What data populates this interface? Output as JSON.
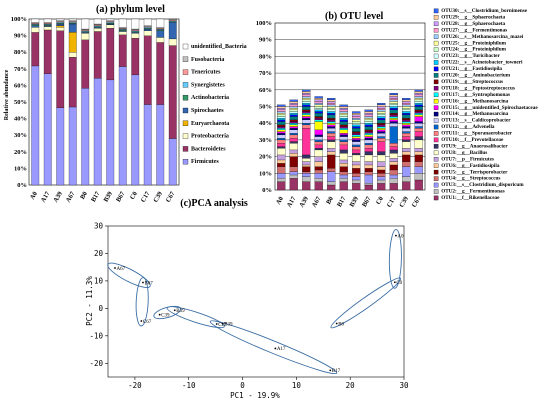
{
  "chart_data": [
    {
      "type": "bar",
      "stacked": true,
      "title": "(a) phylum level",
      "ylabel": "Relative abundance",
      "ylim": [
        0,
        100
      ],
      "yticks": [
        "0%",
        "10%",
        "20%",
        "30%",
        "40%",
        "50%",
        "60%",
        "70%",
        "80%",
        "90%",
        "100%"
      ],
      "categories": [
        "A0",
        "A17",
        "A39",
        "A67",
        "B0",
        "B17",
        "B39",
        "B67",
        "C0",
        "C17",
        "C39",
        "C67"
      ],
      "legend_placement": "right",
      "series": [
        {
          "name": "Firmicutes",
          "color": "#9999ff",
          "values": [
            71,
            66,
            46,
            47,
            58,
            64,
            63,
            71,
            66,
            48,
            48,
            28
          ]
        },
        {
          "name": "Bacteroidetes",
          "color": "#993366",
          "values": [
            20,
            26,
            46,
            30,
            29,
            28,
            31,
            19,
            22,
            41,
            37,
            56
          ]
        },
        {
          "name": "Proteobacteria",
          "color": "#ffffcc",
          "values": [
            3,
            2,
            2,
            3,
            4,
            2,
            2,
            2,
            3,
            3,
            3,
            4
          ]
        },
        {
          "name": "Euryarchaeota",
          "color": "#f0b400",
          "values": [
            0,
            0,
            1,
            12,
            0,
            0,
            0,
            0,
            0,
            0,
            0,
            0
          ]
        },
        {
          "name": "Spirochaetes",
          "color": "#3366b0",
          "values": [
            1,
            0.5,
            1,
            5,
            0.5,
            0.5,
            0.5,
            0.5,
            0.5,
            1,
            4,
            10
          ]
        },
        {
          "name": "Actinobacteria",
          "color": "#339966",
          "values": [
            0.5,
            0.5,
            0.5,
            0.5,
            0.5,
            0.5,
            0.5,
            0.5,
            0.5,
            0.5,
            0.5,
            0.5
          ]
        },
        {
          "name": "Synergistetes",
          "color": "#66ccff",
          "values": [
            0.5,
            0.5,
            0.5,
            0.5,
            0.5,
            0.5,
            0.5,
            0.5,
            0.5,
            0.5,
            0.5,
            0.5
          ]
        },
        {
          "name": "Tenericutes",
          "color": "#ff9999",
          "values": [
            0.5,
            0.5,
            0.5,
            0.5,
            0.5,
            0.5,
            0.5,
            0.5,
            0.5,
            0.5,
            0.5,
            0.5
          ]
        },
        {
          "name": "Fusobacteria",
          "color": "#c0c0c0",
          "values": [
            0.5,
            0.5,
            0.5,
            0.5,
            0.5,
            0.5,
            0.5,
            0.5,
            0.5,
            0.5,
            0.5,
            0.5
          ]
        },
        {
          "name": "unidentified_Bacteria",
          "color": "#ffffff",
          "values": [
            2,
            2,
            1,
            1,
            6,
            3,
            1,
            5,
            6,
            4,
            5,
            0
          ]
        }
      ]
    },
    {
      "type": "bar",
      "stacked": true,
      "title": "(b) OTU level",
      "ylim": [
        0,
        100
      ],
      "yticks": [
        "0%",
        "10%",
        "20%",
        "30%",
        "40%",
        "50%",
        "60%",
        "70%",
        "80%",
        "90%",
        "100%"
      ],
      "categories": [
        "A0",
        "A17",
        "A39",
        "A67",
        "B0",
        "B17",
        "B39",
        "B67",
        "C0",
        "C17",
        "C39",
        "C67"
      ],
      "legend_placement": "right",
      "series": [
        {
          "name": "OTU1:__f__Rikenellaceae",
          "color": "#993366",
          "values": [
            5,
            7,
            5,
            5,
            3,
            5,
            4,
            3,
            4,
            4,
            5,
            6
          ]
        },
        {
          "name": "OTU2:__g__Fermentimonas",
          "color": "#c0c0c0",
          "values": [
            2,
            2,
            3,
            2,
            2,
            2,
            2,
            1,
            2,
            3,
            3,
            4
          ]
        },
        {
          "name": "OTU3:__s__Clostridium_disporicum",
          "color": "#9999ff",
          "values": [
            3,
            2,
            2,
            3,
            6,
            2,
            2,
            5,
            2,
            2,
            6,
            4
          ]
        },
        {
          "name": "OTU4:__g__Streptococcus",
          "color": "#d07070",
          "values": [
            4,
            3,
            1,
            2,
            2,
            2,
            2,
            2,
            2,
            3,
            3,
            3
          ]
        },
        {
          "name": "OTU5:__g__Terrisporobacter",
          "color": "#800000",
          "values": [
            2,
            6,
            3,
            2,
            8,
            3,
            3,
            2,
            2,
            3,
            4,
            4
          ]
        },
        {
          "name": "OTU6:__g__Fastidiosipila",
          "color": "#ffcc99",
          "values": [
            2,
            2,
            1,
            3,
            2,
            2,
            2,
            2,
            2,
            2,
            2,
            2
          ]
        },
        {
          "name": "OTU7:__p__Firmicutes",
          "color": "#c4a0e0",
          "values": [
            3,
            2,
            2,
            3,
            2,
            2,
            2,
            2,
            3,
            2,
            2,
            2
          ]
        },
        {
          "name": "OTU8:__g__Bacillus",
          "color": "#ffffcc",
          "values": [
            4,
            4,
            2,
            4,
            4,
            4,
            4,
            4,
            4,
            3,
            4,
            5
          ]
        },
        {
          "name": "OTU9:__g__Anaerosalibacter",
          "color": "#333366",
          "values": [
            1,
            1,
            2,
            1,
            1,
            2,
            1,
            2,
            2,
            2,
            1,
            2
          ]
        },
        {
          "name": "OTU10:__f__Prevotellaceae",
          "color": "#ff3399",
          "values": [
            2,
            2,
            16,
            2,
            2,
            3,
            2,
            2,
            6,
            2,
            2,
            3
          ]
        },
        {
          "name": "OTU11:__g__Sporanaerobacter",
          "color": "#ff8080",
          "values": [
            2,
            2,
            2,
            2,
            2,
            2,
            2,
            2,
            2,
            2,
            2,
            2
          ]
        },
        {
          "name": "OTU12:__g__Advenella",
          "color": "#0066cc",
          "values": [
            1,
            1,
            1,
            1,
            1,
            1,
            1,
            1,
            1,
            10,
            1,
            1
          ]
        },
        {
          "name": "OTU13:__s__Caldicoprobacter",
          "color": "#ccccff",
          "values": [
            2,
            2,
            2,
            2,
            2,
            2,
            2,
            2,
            2,
            2,
            2,
            2
          ]
        },
        {
          "name": "OTU14:__g__Methanosarcina",
          "color": "#000080",
          "values": [
            1,
            1,
            1,
            1,
            1,
            1,
            1,
            1,
            1,
            1,
            1,
            1
          ]
        },
        {
          "name": "OTU15:__g__unidentified_Spirochaetaceae",
          "color": "#ff00ff",
          "values": [
            1,
            1,
            1,
            3,
            1,
            1,
            1,
            1,
            1,
            1,
            1,
            3
          ]
        },
        {
          "name": "OTU16:__g__Methanosarcina",
          "color": "#ffff00",
          "values": [
            1,
            1,
            1,
            5,
            1,
            2,
            1,
            1,
            1,
            1,
            1,
            1
          ]
        },
        {
          "name": "OTU17:__g__Syntrophomonas",
          "color": "#00ffff",
          "values": [
            1,
            1,
            1,
            1,
            1,
            1,
            1,
            1,
            1,
            1,
            1,
            1
          ]
        },
        {
          "name": "OTU18:__g__Peptostreptococcus",
          "color": "#800080",
          "values": [
            1,
            1,
            1,
            1,
            1,
            1,
            1,
            1,
            1,
            1,
            1,
            1
          ]
        },
        {
          "name": "OTU19:__g__Streptococcus",
          "color": "#800000",
          "values": [
            1,
            1,
            1,
            1,
            1,
            1,
            1,
            1,
            1,
            1,
            1,
            1
          ]
        },
        {
          "name": "OTU20:__g__Aminobacterium",
          "color": "#008080",
          "values": [
            2,
            2,
            2,
            2,
            2,
            2,
            2,
            2,
            2,
            2,
            2,
            2
          ]
        },
        {
          "name": "OTU21:__g__Fastidiosipila",
          "color": "#0000ff",
          "values": [
            1,
            1,
            1,
            1,
            1,
            1,
            1,
            1,
            1,
            1,
            1,
            1
          ]
        },
        {
          "name": "OTU22:__s__Acinetobacter_towneri",
          "color": "#00ccff",
          "values": [
            1,
            1,
            1,
            1,
            1,
            1,
            1,
            1,
            1,
            1,
            1,
            1
          ]
        },
        {
          "name": "OTU23:__g__Turicibacter",
          "color": "#ccffff",
          "values": [
            1,
            1,
            1,
            1,
            1,
            1,
            1,
            1,
            1,
            1,
            1,
            1
          ]
        },
        {
          "name": "OTU24:__g__Proteiniphilum",
          "color": "#ccffcc",
          "values": [
            1,
            1,
            1,
            1,
            1,
            1,
            1,
            1,
            1,
            1,
            1,
            1
          ]
        },
        {
          "name": "OTU25:__g__Proteiniphilum",
          "color": "#ffff99",
          "values": [
            1,
            1,
            1,
            1,
            1,
            1,
            1,
            1,
            1,
            1,
            1,
            1
          ]
        },
        {
          "name": "OTU26:__s__Methanosarcina_mazei",
          "color": "#99ccff",
          "values": [
            1,
            1,
            1,
            1,
            1,
            1,
            1,
            1,
            1,
            1,
            1,
            1
          ]
        },
        {
          "name": "OTU27:__g__Fermentimonas",
          "color": "#ff99cc",
          "values": [
            1,
            1,
            1,
            1,
            1,
            1,
            1,
            1,
            1,
            1,
            1,
            1
          ]
        },
        {
          "name": "OTU28:__g__Sphaerochaeta",
          "color": "#cc99ff",
          "values": [
            1,
            1,
            1,
            1,
            1,
            1,
            1,
            1,
            1,
            1,
            1,
            1
          ]
        },
        {
          "name": "OTU29:__g__Sphaerochaeta",
          "color": "#ffcc99",
          "values": [
            1,
            1,
            1,
            1,
            1,
            1,
            1,
            1,
            1,
            1,
            1,
            1
          ]
        },
        {
          "name": "OTU30:__s__Clostridium_bornimense",
          "color": "#3366ff",
          "values": [
            1,
            1,
            1,
            1,
            1,
            1,
            1,
            1,
            1,
            1,
            1,
            1
          ]
        }
      ]
    },
    {
      "type": "scatter",
      "title": "(c)PCA analysis",
      "xlabel": "PC1 - 19.9%",
      "ylabel": "PC2 - 11.3%",
      "xlim": [
        -25,
        30
      ],
      "ylim": [
        -25,
        30
      ],
      "xticks": [
        -20,
        -10,
        0,
        10,
        20,
        30
      ],
      "yticks": [
        -20,
        -10,
        0,
        10,
        20,
        30
      ],
      "grid": false,
      "points": [
        {
          "label": "A0",
          "x": 28.5,
          "y": 26.5
        },
        {
          "label": "C0",
          "x": 28.3,
          "y": 9.5
        },
        {
          "label": "B0",
          "x": 17.5,
          "y": -5.5
        },
        {
          "label": "A67",
          "x": -23.7,
          "y": 14.7
        },
        {
          "label": "B67",
          "x": -18.5,
          "y": 9.4
        },
        {
          "label": "C67",
          "x": -18.8,
          "y": -4.6
        },
        {
          "label": "C39",
          "x": -15.4,
          "y": -2.3
        },
        {
          "label": "B39",
          "x": -12.6,
          "y": -0.7
        },
        {
          "label": "C17",
          "x": -4.8,
          "y": -5.7
        },
        {
          "label": "B39",
          "x": -3.7,
          "y": -5.6
        },
        {
          "label": "A17",
          "x": 6.1,
          "y": -14.6
        },
        {
          "label": "B17",
          "x": 16.3,
          "y": -22.6
        }
      ]
    }
  ]
}
